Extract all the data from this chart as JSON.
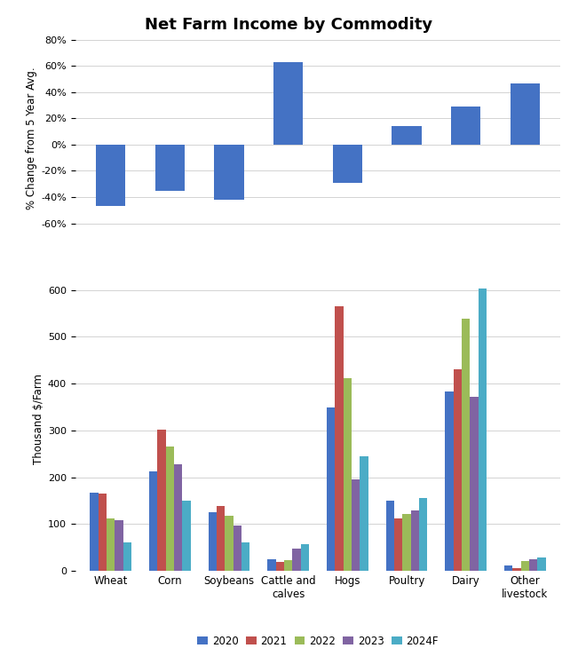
{
  "title": "Net Farm Income by Commodity",
  "categories": [
    "Wheat",
    "Corn",
    "Soybeans",
    "Cattle and\ncalves",
    "Hogs",
    "Poultry",
    "Dairy",
    "Other\nlivestock"
  ],
  "top_chart": {
    "ylabel": "% Change from 5 Year Avg.",
    "values": [
      -47,
      -35,
      -42,
      63,
      -29,
      14,
      29,
      47
    ],
    "bar_color": "#4472C4",
    "ylim": [
      -70,
      80
    ],
    "yticks": [
      -60,
      -40,
      -20,
      0,
      20,
      40,
      60,
      80
    ]
  },
  "bottom_chart": {
    "ylabel": "Thousand $/Farm",
    "series": {
      "2020": [
        168,
        212,
        125,
        25,
        350,
        150,
        383,
        11
      ],
      "2021": [
        165,
        302,
        138,
        20,
        565,
        112,
        430,
        7
      ],
      "2022": [
        112,
        265,
        118,
        23,
        412,
        122,
        538,
        22
      ],
      "2023": [
        108,
        228,
        98,
        48,
        195,
        130,
        372,
        25
      ],
      "2024F": [
        62,
        150,
        62,
        58,
        245,
        155,
        603,
        28
      ]
    },
    "colors": {
      "2020": "#4472C4",
      "2021": "#C0504D",
      "2022": "#9BBB59",
      "2023": "#8064A2",
      "2024F": "#4BACC6"
    },
    "ylim": [
      0,
      650
    ],
    "yticks": [
      0,
      100,
      200,
      300,
      400,
      500,
      600
    ]
  },
  "legend_labels": [
    "2020",
    "2021",
    "2022",
    "2023",
    "2024F"
  ],
  "background_color": "#FFFFFF"
}
